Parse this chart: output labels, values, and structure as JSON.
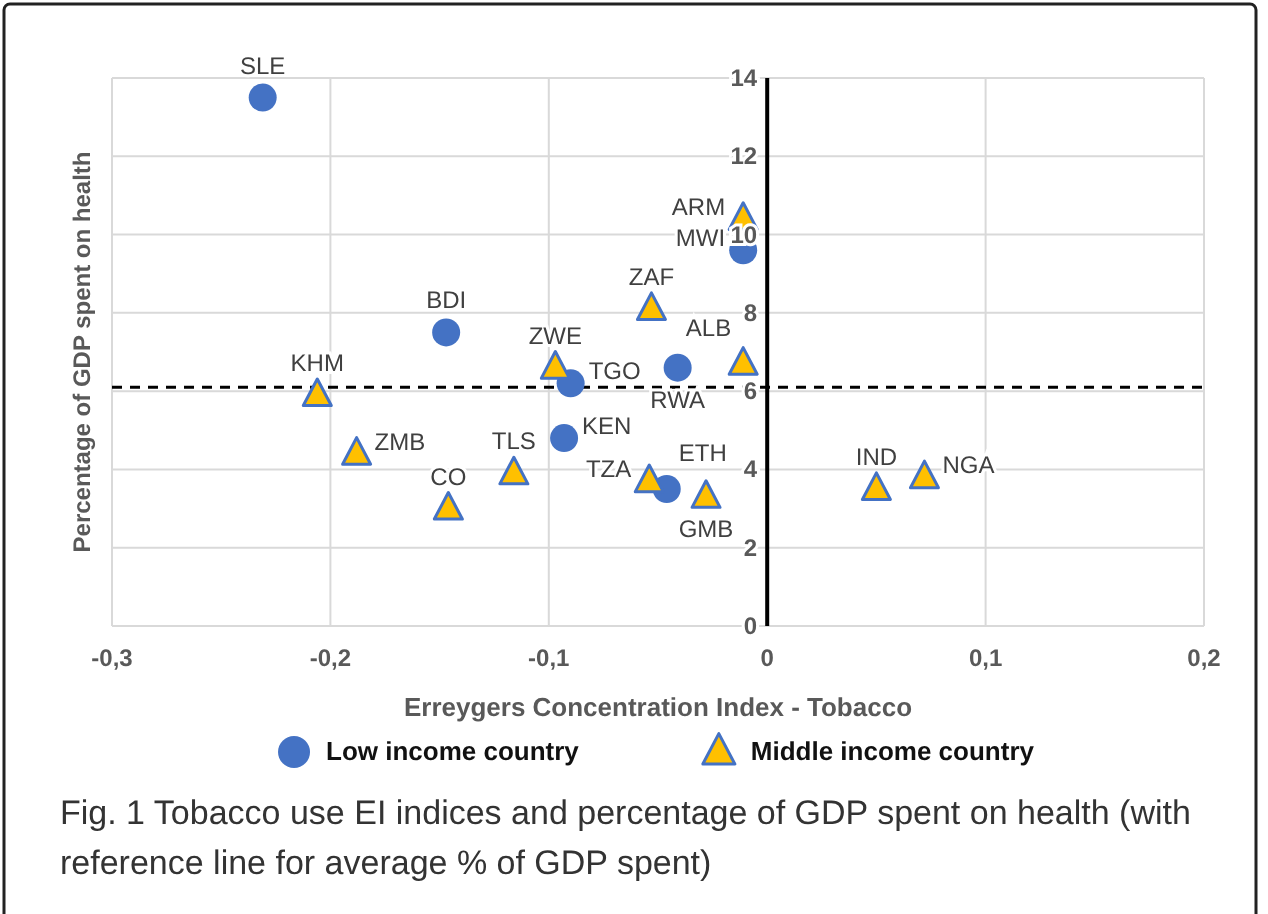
{
  "chart_data": {
    "type": "scatter",
    "xlabel": "Erreygers Concentration Index - Tobacco",
    "ylabel": "Percentage of GDP spent on health",
    "xlim": [
      -0.3,
      0.2
    ],
    "xticks": [
      {
        "value": -0.3,
        "label": "-0,3"
      },
      {
        "value": -0.2,
        "label": "-0,2"
      },
      {
        "value": -0.1,
        "label": "-0,1"
      },
      0,
      {
        "value": 0.1,
        "label": "0,1"
      },
      {
        "value": 0.2,
        "label": "0,2"
      }
    ],
    "ylim": [
      0,
      14
    ],
    "yticks": [
      0,
      2,
      4,
      6,
      8,
      10,
      12,
      14
    ],
    "grid": true,
    "legend": "bottom",
    "series": [
      {
        "name": "Low income country",
        "color": "#4472c4",
        "marker": "circle",
        "x": [
          -0.231,
          -0.147,
          -0.09,
          -0.093,
          -0.041,
          -0.046,
          -0.011
        ],
        "values": [
          13.5,
          7.5,
          6.2,
          4.8,
          6.6,
          3.5,
          9.6
        ]
      },
      {
        "name": "Middle income country",
        "color": "#ffc000",
        "marker": "triangle",
        "x": [
          -0.011,
          -0.053,
          -0.011,
          -0.097,
          -0.206,
          -0.188,
          -0.146,
          -0.116,
          -0.054,
          -0.028,
          0.05,
          0.072
        ],
        "values": [
          10.4,
          8.1,
          6.7,
          6.6,
          5.9,
          4.4,
          3.0,
          3.9,
          3.7,
          3.3,
          3.5,
          3.8
        ]
      }
    ],
    "ref_lines": [
      {
        "axis": "y",
        "value": 6.1,
        "line_style": "dashed",
        "color": "#000000"
      }
    ],
    "annotations": [
      {
        "text": "SLE",
        "x": -0.231,
        "y": 13.5
      },
      {
        "text": "BDI",
        "x": -0.147,
        "y": 7.5
      },
      {
        "text": "TGO",
        "x": -0.09,
        "y": 6.2
      },
      {
        "text": "KEN",
        "x": -0.093,
        "y": 4.8
      },
      {
        "text": "RWA",
        "x": -0.041,
        "y": 6.6
      },
      {
        "text": "ETH",
        "x": -0.046,
        "y": 3.5
      },
      {
        "text": "MWI",
        "x": -0.011,
        "y": 9.6
      },
      {
        "text": "ARM",
        "x": -0.011,
        "y": 10.4
      },
      {
        "text": "ZAF",
        "x": -0.053,
        "y": 8.1
      },
      {
        "text": "ALB",
        "x": -0.011,
        "y": 6.7
      },
      {
        "text": "ZWE",
        "x": -0.097,
        "y": 6.6
      },
      {
        "text": "KHM",
        "x": -0.206,
        "y": 5.9
      },
      {
        "text": "ZMB",
        "x": -0.188,
        "y": 4.4
      },
      {
        "text": "CO",
        "x": -0.146,
        "y": 3.0
      },
      {
        "text": "TLS",
        "x": -0.116,
        "y": 3.9
      },
      {
        "text": "TZA",
        "x": -0.054,
        "y": 3.7
      },
      {
        "text": "GMB",
        "x": -0.028,
        "y": 3.3
      },
      {
        "text": "IND",
        "x": 0.05,
        "y": 3.5
      },
      {
        "text": "NGA",
        "x": 0.072,
        "y": 3.8
      },
      "Fig. 1 Tobacco use EI indices and percentage of GDP spent on health (with reference line for average % of GDP spent)"
    ]
  }
}
